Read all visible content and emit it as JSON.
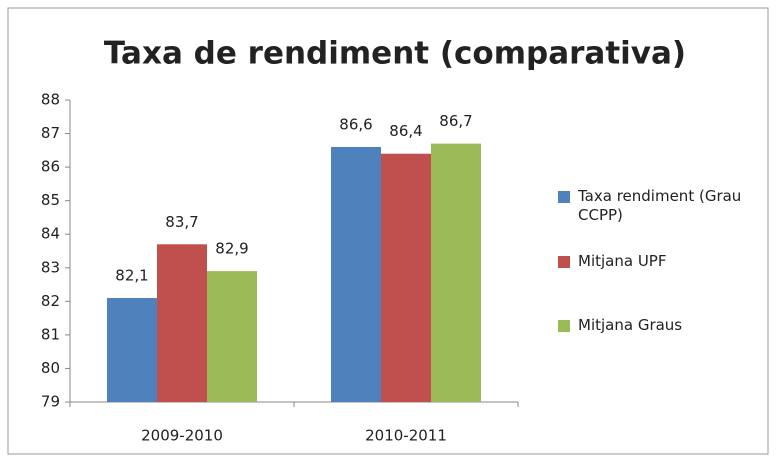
{
  "chart_data": {
    "type": "bar",
    "title": "Taxa de rendiment (comparativa)",
    "categories": [
      "2009-2010",
      "2010-2011"
    ],
    "series": [
      {
        "name": "Taxa rendiment (Grau CCPP)",
        "color": "#4f81bd",
        "values": [
          82.1,
          86.6
        ],
        "value_labels": [
          "82,1",
          "86,6"
        ]
      },
      {
        "name": "Mitjana UPF",
        "color": "#c0504d",
        "values": [
          83.7,
          86.4
        ],
        "value_labels": [
          "83,7",
          "86,4"
        ]
      },
      {
        "name": "Mitjana Graus",
        "color": "#9bbb59",
        "values": [
          82.9,
          86.7
        ],
        "value_labels": [
          "82,9",
          "86,7"
        ]
      }
    ],
    "ylim": [
      79,
      88
    ],
    "yticks": [
      79,
      80,
      81,
      82,
      83,
      84,
      85,
      86,
      87,
      88
    ],
    "grid": false,
    "legend": "right"
  }
}
